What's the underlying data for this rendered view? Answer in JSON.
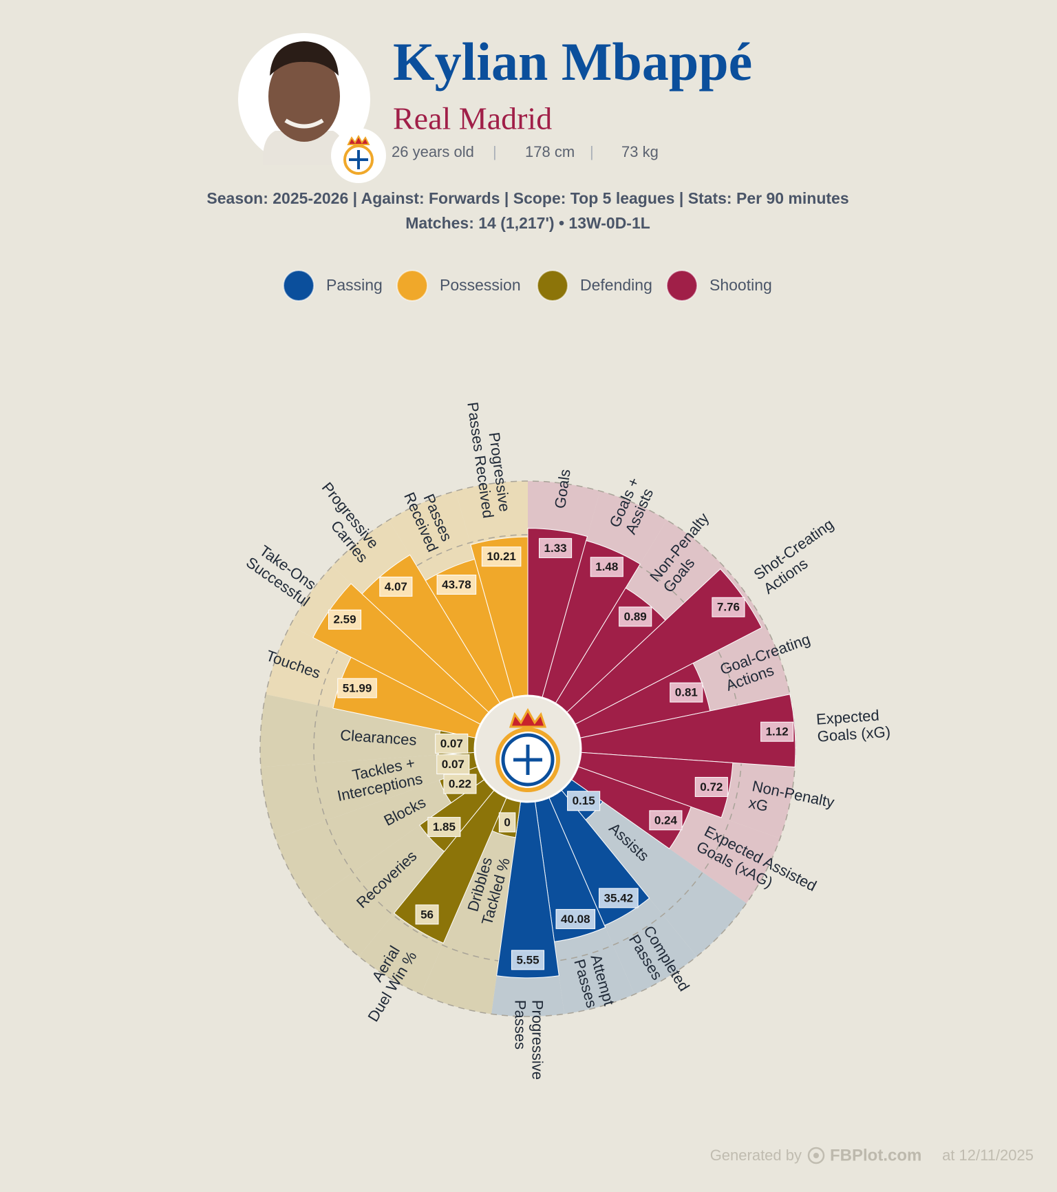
{
  "header": {
    "name": "Kylian Mbappé",
    "team": "Real Madrid",
    "age": "26 years old",
    "height": "178 cm",
    "weight": "73 kg",
    "season_line": "Season: 2025-2026 | Against: Forwards | Scope: Top 5 leagues | Stats: Per 90 minutes",
    "matches_line": "Matches: 14 (1,217') • 13W-0D-1L"
  },
  "footer": {
    "prefix": "Generated by",
    "brand": "FBPlot.com",
    "date_text": "at 12/11/2025"
  },
  "chart_data": {
    "type": "pizza",
    "groups": [
      {
        "name": "Passing",
        "color": "#0b4f9c",
        "bg": "#bfcad1",
        "box": "#bcd0e6"
      },
      {
        "name": "Possession",
        "color": "#f0a82a",
        "bg": "#eadbb7",
        "box": "#fbe3b6"
      },
      {
        "name": "Defending",
        "color": "#8c7409",
        "bg": "#d9d1b2",
        "box": "#e8ddb8"
      },
      {
        "name": "Shooting",
        "color": "#a01f48",
        "bg": "#dfc3c7",
        "box": "#e6bac8"
      }
    ],
    "categories": [
      "Goals",
      "Goals + Assists",
      "Non-Penalty Goals",
      "Shot-Creating Actions",
      "Goal-Creating Actions",
      "Expected Goals (xG)",
      "Non-Penalty xG",
      "Expected Assisted Goals (xAG)",
      "Assists",
      "Completed Passes",
      "Attempt Passes",
      "Progressive Passes",
      "Dribbles Tackled %",
      "Aerial Duel Win %",
      "Recoveries",
      "Blocks",
      "Tackles + Interceptions",
      "Clearances",
      "Touches",
      "Take-Ons Successful",
      "Progressive Carries",
      "Passes Received",
      "Progressive Passes Received"
    ],
    "group_index": [
      3,
      3,
      3,
      3,
      3,
      3,
      3,
      3,
      0,
      0,
      0,
      0,
      2,
      2,
      2,
      2,
      2,
      2,
      1,
      1,
      1,
      1,
      1
    ],
    "values": [
      1.33,
      1.48,
      0.89,
      7.76,
      0.81,
      1.12,
      0.72,
      0.24,
      0.15,
      35.42,
      40.08,
      5.55,
      0,
      56,
      1.85,
      0.22,
      0.07,
      0.07,
      51.99,
      2.59,
      4.07,
      43.78,
      10.21
    ],
    "percentiles": [
      78,
      76,
      63,
      98,
      62,
      100,
      71,
      56,
      18,
      65,
      66,
      82,
      17,
      74,
      37,
      19,
      16,
      17,
      68,
      88,
      81,
      67,
      74
    ],
    "rlim": [
      0,
      100
    ],
    "rticks": [
      75,
      100
    ],
    "grid": true
  }
}
